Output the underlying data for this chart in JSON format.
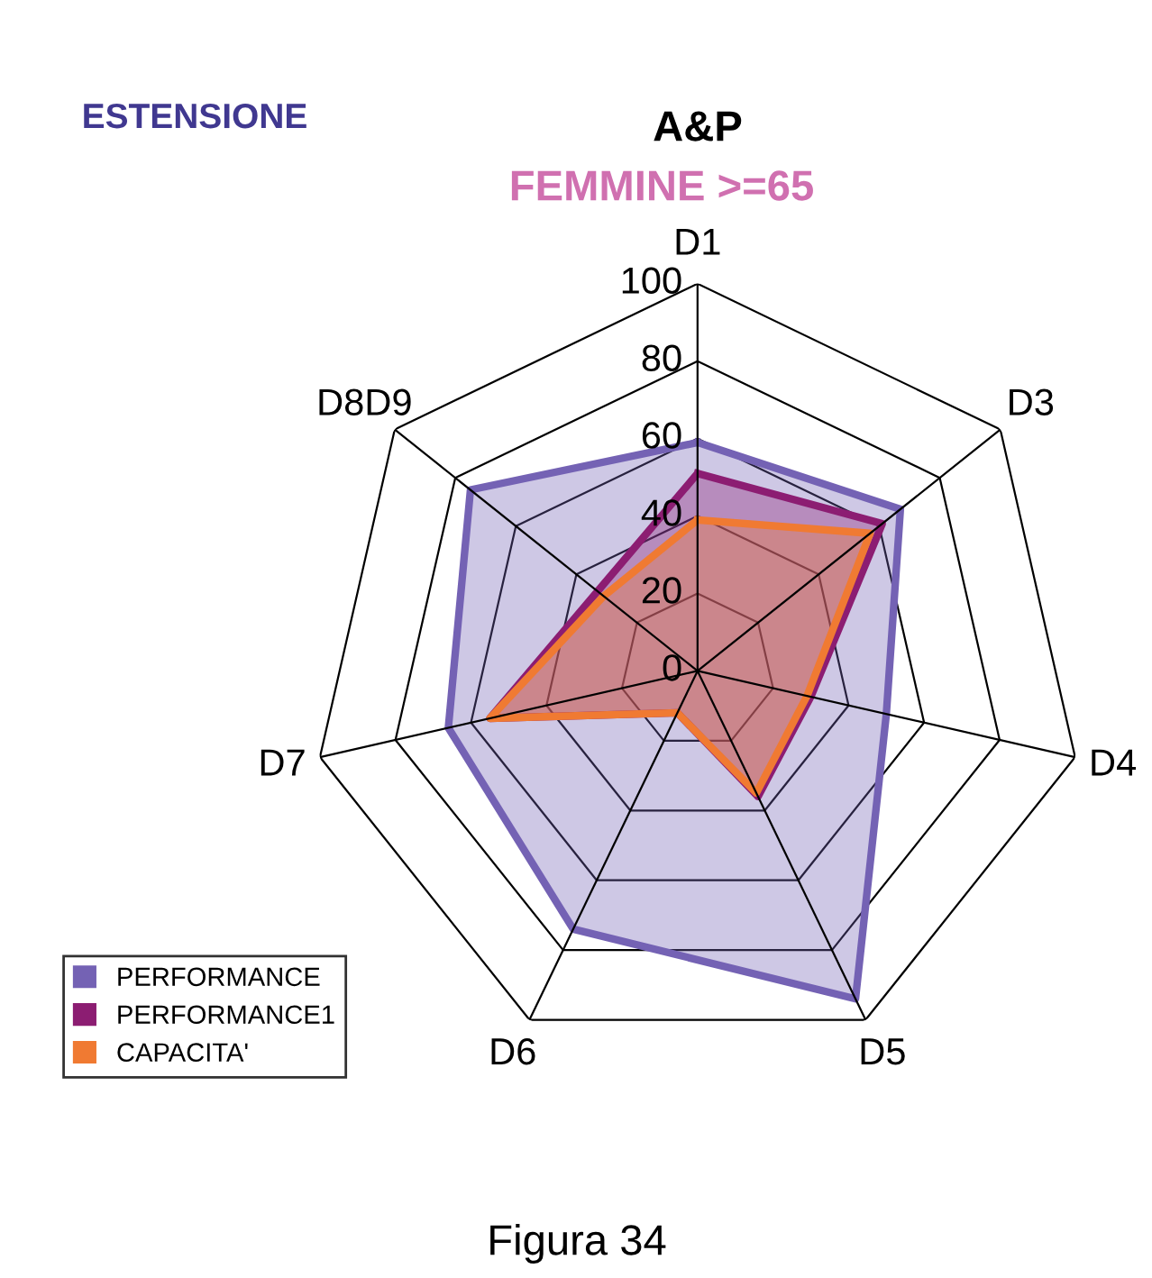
{
  "chart_data": {
    "type": "radar",
    "title": "A&P",
    "subtitle": "FEMMINE >=65",
    "annotations": [
      "ESTENSIONE",
      "Figura 34"
    ],
    "categories": [
      "D1",
      "D3",
      "D4",
      "D5",
      "D6",
      "D7",
      "D8D9"
    ],
    "ylim": [
      0,
      100
    ],
    "yticks": [
      0,
      20,
      40,
      60,
      80,
      100
    ],
    "grid": true,
    "legend": "bottom left",
    "marker": "none",
    "series": [
      {
        "name": "PERFORMANCE",
        "color": "#7462b4",
        "values": [
          59,
          67,
          50,
          94,
          74,
          66,
          75
        ]
      },
      {
        "name": "PERFORMANCE1",
        "color": "#8c1d72",
        "values": [
          51,
          61,
          30,
          36,
          12,
          55,
          33
        ]
      },
      {
        "name": "CAPACITA'",
        "color": "#f07a32",
        "values": [
          39,
          57,
          29,
          35,
          12,
          55,
          31
        ]
      }
    ]
  }
}
